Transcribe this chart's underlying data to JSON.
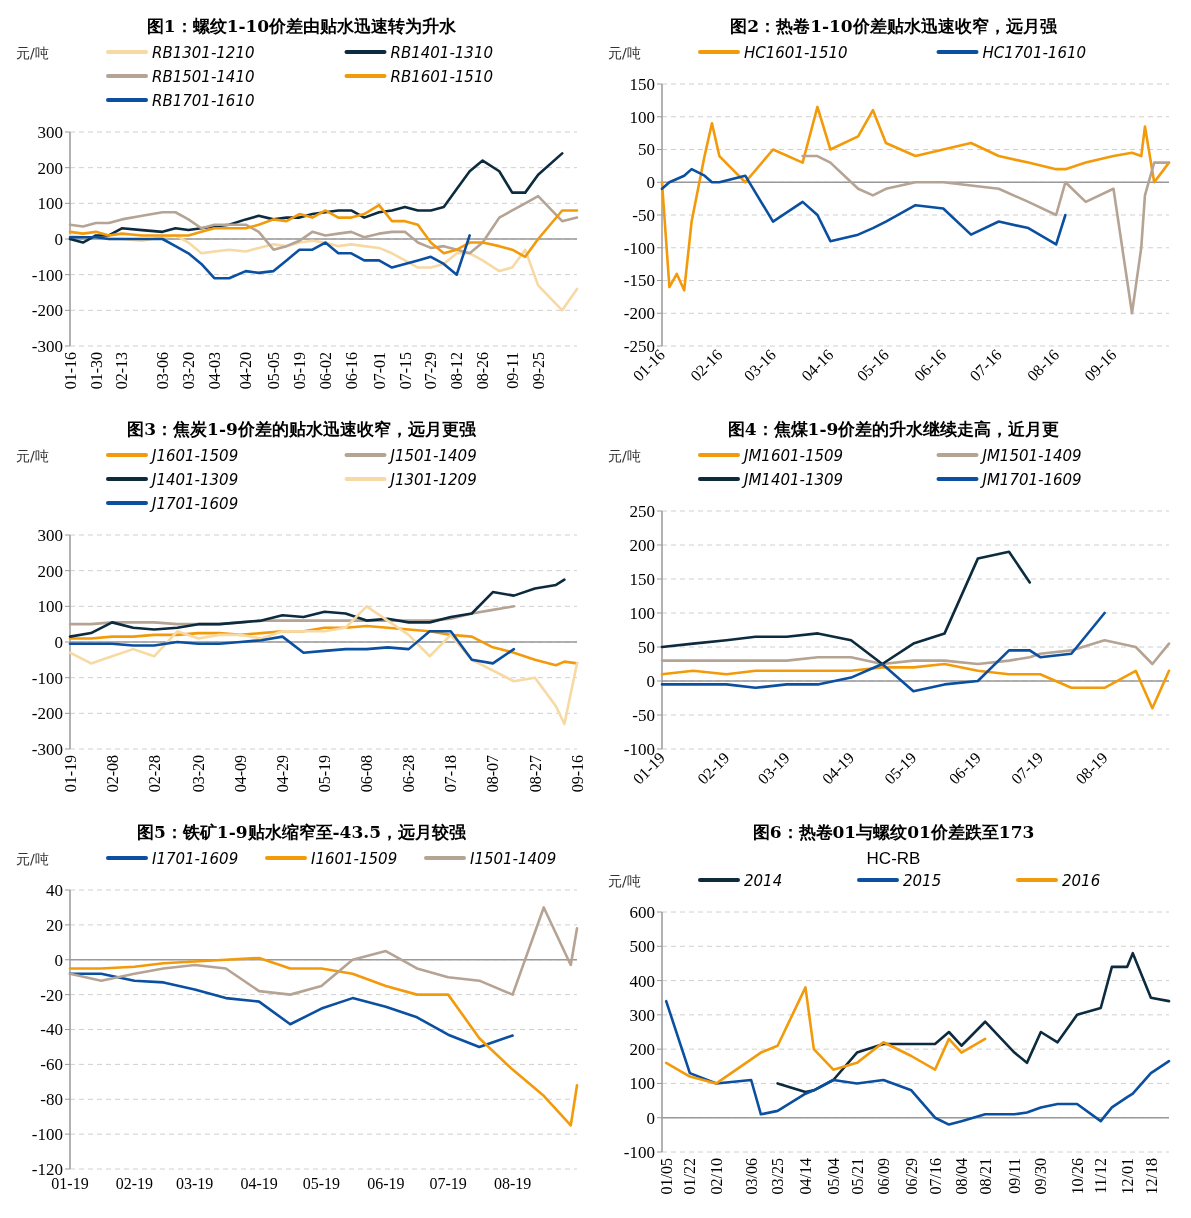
{
  "chart_data": [
    {
      "type": "line",
      "title": "图1：螺纹1-10价差由贴水迅速转为升水",
      "ylabel": "元/吨",
      "legend": "top",
      "grid": "y",
      "ylim": [
        -300,
        300
      ],
      "yticks": [
        -300,
        -200,
        -100,
        0,
        100,
        200,
        300
      ],
      "xlim": [
        "--01-16",
        "--10-16"
      ],
      "xticks": [
        {
          "value": "--01-16",
          "label": "01-16"
        },
        {
          "value": "--01-30",
          "label": "01-30"
        },
        {
          "value": "--02-13",
          "label": "02-13"
        },
        {
          "value": "--03-06",
          "label": "03-06"
        },
        {
          "value": "--03-20",
          "label": "03-20"
        },
        {
          "value": "--04-03",
          "label": "04-03"
        },
        {
          "value": "--04-20",
          "label": "04-20"
        },
        {
          "value": "--05-05",
          "label": "05-05"
        },
        {
          "value": "--05-19",
          "label": "05-19"
        },
        {
          "value": "--06-02",
          "label": "06-02"
        },
        {
          "value": "--06-16",
          "label": "06-16"
        },
        {
          "value": "--07-01",
          "label": "07-01"
        },
        {
          "value": "--07-15",
          "label": "07-15"
        },
        {
          "value": "--07-29",
          "label": "07-29"
        },
        {
          "value": "--08-12",
          "label": "08-12"
        },
        {
          "value": "--08-26",
          "label": "08-26"
        },
        {
          "value": "--09-11",
          "label": "09-11"
        },
        {
          "value": "--09-25",
          "label": "09-25"
        }
      ],
      "x": [
        "--01-16",
        "--01-23",
        "--01-30",
        "--02-06",
        "--02-13",
        "--02-24",
        "--03-06",
        "--03-13",
        "--03-20",
        "--03-27",
        "--04-03",
        "--04-11",
        "--04-20",
        "--04-27",
        "--05-05",
        "--05-12",
        "--05-19",
        "--05-26",
        "--06-02",
        "--06-09",
        "--06-16",
        "--06-23",
        "--07-01",
        "--07-08",
        "--07-15",
        "--07-22",
        "--07-29",
        "--08-05",
        "--08-12",
        "--08-19",
        "--08-26",
        "--09-04",
        "--09-11",
        "--09-18",
        "--09-25",
        "--10-08",
        "--10-16"
      ],
      "series": [
        {
          "name": "RB1301-1210",
          "color": "#f7d9a3",
          "values": [
            10,
            5,
            5,
            0,
            0,
            -5,
            5,
            10,
            -10,
            -40,
            -35,
            -30,
            -35,
            -25,
            -15,
            -20,
            -10,
            -5,
            -10,
            -20,
            -15,
            -20,
            -25,
            -40,
            -60,
            -80,
            -80,
            -70,
            -40,
            -40,
            -60,
            -90,
            -80,
            -30,
            -130,
            -200,
            -140
          ]
        },
        {
          "name": "RB1401-1310",
          "color": "#0d2b3e",
          "values": [
            0,
            -10,
            10,
            10,
            30,
            25,
            20,
            30,
            25,
            30,
            35,
            40,
            55,
            65,
            55,
            60,
            60,
            70,
            75,
            80,
            80,
            60,
            75,
            80,
            90,
            80,
            80,
            90,
            140,
            190,
            220,
            190,
            130,
            130,
            180,
            240,
            null
          ]
        },
        {
          "name": "RB1501-1410",
          "color": "#b5a394",
          "values": [
            40,
            35,
            45,
            45,
            55,
            65,
            75,
            75,
            55,
            30,
            40,
            40,
            40,
            20,
            -30,
            -20,
            -5,
            20,
            10,
            15,
            20,
            5,
            15,
            20,
            20,
            -10,
            -25,
            -20,
            -30,
            -40,
            -10,
            60,
            80,
            100,
            120,
            50,
            60
          ]
        },
        {
          "name": "RB1601-1510",
          "color": "#f39a0a",
          "values": [
            20,
            15,
            20,
            10,
            15,
            10,
            10,
            10,
            10,
            20,
            30,
            30,
            30,
            40,
            55,
            50,
            70,
            60,
            80,
            60,
            60,
            70,
            95,
            50,
            50,
            40,
            -10,
            -40,
            -30,
            -10,
            -10,
            -20,
            -30,
            -50,
            0,
            80,
            80
          ]
        },
        {
          "name": "RB1701-1610",
          "color": "#0a4fa0",
          "values": [
            5,
            5,
            5,
            0,
            0,
            0,
            0,
            -20,
            -40,
            -70,
            -110,
            -110,
            -90,
            -95,
            -90,
            -60,
            -30,
            -30,
            -10,
            -40,
            -40,
            -60,
            -60,
            -80,
            -70,
            -60,
            -50,
            -70,
            -100,
            10,
            null,
            null,
            null,
            null,
            null,
            null,
            null
          ]
        }
      ]
    },
    {
      "type": "line",
      "title": "图2：热卷1-10价差贴水迅速收窄，远月强",
      "ylabel": "元/吨",
      "legend": "top",
      "grid": "y",
      "ylim": [
        -250,
        150
      ],
      "yticks": [
        -250,
        -200,
        -150,
        -100,
        -50,
        0,
        50,
        100,
        150
      ],
      "xlim": [
        "--01-16",
        "--10-16"
      ],
      "xticks": [
        {
          "value": "--01-16",
          "label": "01-16"
        },
        {
          "value": "--02-16",
          "label": "02-16"
        },
        {
          "value": "--03-16",
          "label": "03-16"
        },
        {
          "value": "--04-16",
          "label": "04-16"
        },
        {
          "value": "--05-16",
          "label": "05-16"
        },
        {
          "value": "--06-16",
          "label": "06-16"
        },
        {
          "value": "--07-16",
          "label": "07-16"
        },
        {
          "value": "--08-16",
          "label": "08-16"
        },
        {
          "value": "--09-16",
          "label": "09-16"
        }
      ],
      "x": [
        "--01-16",
        "--01-20",
        "--01-24",
        "--01-28",
        "--02-01",
        "--02-08",
        "--02-12",
        "--02-16",
        "--03-01",
        "--03-16",
        "--04-01",
        "--04-09",
        "--04-16",
        "--05-01",
        "--05-09",
        "--05-16",
        "--06-01",
        "--06-16",
        "--07-01",
        "--07-16",
        "--08-01",
        "--08-16",
        "--08-21",
        "--09-01",
        "--09-16",
        "--09-26",
        "--10-01",
        "--10-03",
        "--10-08",
        "--10-16"
      ],
      "series": [
        {
          "name": "HC1601-1510",
          "color": "#f39a0a",
          "values": [
            0,
            -160,
            -140,
            -165,
            -60,
            40,
            90,
            40,
            0,
            50,
            30,
            115,
            50,
            70,
            110,
            60,
            40,
            50,
            60,
            40,
            30,
            20,
            20,
            30,
            40,
            45,
            40,
            85,
            0,
            30
          ]
        },
        {
          "name": "HC1701-1610",
          "color": "#0a4fa0",
          "values": [
            -10,
            0,
            5,
            10,
            20,
            10,
            0,
            0,
            10,
            -60,
            -30,
            -50,
            -90,
            -80,
            -70,
            -60,
            -35,
            -40,
            -80,
            -60,
            -70,
            -95,
            -50,
            null,
            null,
            null,
            null,
            null,
            null,
            null
          ]
        },
        {
          "color": "#b5a394",
          "values": [
            null,
            null,
            null,
            null,
            null,
            null,
            null,
            null,
            null,
            null,
            40,
            40,
            30,
            -10,
            -20,
            -10,
            0,
            0,
            -5,
            -10,
            -30,
            -50,
            0,
            -30,
            -10,
            -200,
            -100,
            -20,
            30,
            30
          ]
        }
      ]
    },
    {
      "type": "line",
      "title": "图3：焦炭1-9价差的贴水迅速收窄，远月更强",
      "ylabel": "元/吨",
      "legend": "top",
      "grid": "y",
      "ylim": [
        -300,
        300
      ],
      "yticks": [
        -300,
        -200,
        -100,
        0,
        100,
        200,
        300
      ],
      "xlim": [
        "--01-19",
        "--09-16"
      ],
      "xticks": [
        {
          "value": "--01-19",
          "label": "01-19"
        },
        {
          "value": "--02-08",
          "label": "02-08"
        },
        {
          "value": "--02-28",
          "label": "02-28"
        },
        {
          "value": "--03-20",
          "label": "03-20"
        },
        {
          "value": "--04-09",
          "label": "04-09"
        },
        {
          "value": "--04-29",
          "label": "04-29"
        },
        {
          "value": "--05-19",
          "label": "05-19"
        },
        {
          "value": "--06-08",
          "label": "06-08"
        },
        {
          "value": "--06-28",
          "label": "06-28"
        },
        {
          "value": "--07-18",
          "label": "07-18"
        },
        {
          "value": "--08-07",
          "label": "08-07"
        },
        {
          "value": "--08-27",
          "label": "08-27"
        },
        {
          "value": "--09-16",
          "label": "09-16"
        }
      ],
      "x": [
        "--01-19",
        "--01-29",
        "--02-08",
        "--02-18",
        "--02-28",
        "--03-10",
        "--03-20",
        "--03-30",
        "--04-09",
        "--04-19",
        "--04-29",
        "--05-09",
        "--05-19",
        "--05-29",
        "--06-08",
        "--06-18",
        "--06-28",
        "--07-08",
        "--07-18",
        "--07-28",
        "--08-07",
        "--08-17",
        "--08-27",
        "--09-06",
        "--09-10",
        "--09-16"
      ],
      "series": [
        {
          "name": "J1601-1509",
          "color": "#f39a0a",
          "values": [
            10,
            10,
            15,
            15,
            20,
            20,
            25,
            25,
            20,
            25,
            30,
            30,
            40,
            40,
            45,
            40,
            35,
            30,
            20,
            15,
            -15,
            -30,
            -50,
            -65,
            -55,
            -60
          ]
        },
        {
          "name": "J1501-1409",
          "color": "#b5a394",
          "values": [
            50,
            50,
            55,
            55,
            55,
            50,
            50,
            50,
            55,
            60,
            60,
            60,
            60,
            60,
            60,
            60,
            60,
            60,
            65,
            80,
            90,
            100,
            null,
            null,
            null,
            null
          ]
        },
        {
          "name": "J1401-1309",
          "color": "#0d2b3e",
          "values": [
            15,
            25,
            55,
            40,
            35,
            40,
            50,
            50,
            55,
            60,
            75,
            70,
            85,
            80,
            60,
            65,
            55,
            55,
            70,
            80,
            140,
            130,
            150,
            160,
            175,
            null
          ]
        },
        {
          "name": "J1301-1209",
          "color": "#f7d9a3",
          "values": [
            -30,
            -60,
            -40,
            -20,
            -40,
            30,
            10,
            20,
            20,
            10,
            30,
            30,
            30,
            40,
            100,
            60,
            20,
            -40,
            20,
            -50,
            -80,
            -110,
            -100,
            -180,
            -230,
            -60
          ]
        },
        {
          "name": "J1701-1609",
          "color": "#0a4fa0",
          "values": [
            -5,
            -5,
            -5,
            -10,
            -10,
            0,
            -5,
            -5,
            0,
            5,
            15,
            -30,
            -25,
            -20,
            -20,
            -15,
            -20,
            30,
            30,
            -50,
            -60,
            -20,
            null,
            null,
            null,
            null
          ]
        }
      ]
    },
    {
      "type": "line",
      "title": "图4：焦煤1-9价差的升水继续走高，近月更",
      "ylabel": "元/吨",
      "legend": "top",
      "grid": "y",
      "ylim": [
        -100,
        250
      ],
      "yticks": [
        -100,
        -50,
        0,
        50,
        100,
        150,
        200,
        250
      ],
      "xlim": [
        "--01-19",
        "--09-19"
      ],
      "xticks": [
        {
          "value": "--01-19",
          "label": "01-19"
        },
        {
          "value": "--02-19",
          "label": "02-19"
        },
        {
          "value": "--03-19",
          "label": "03-19"
        },
        {
          "value": "--04-19",
          "label": "04-19"
        },
        {
          "value": "--05-19",
          "label": "05-19"
        },
        {
          "value": "--06-19",
          "label": "06-19"
        },
        {
          "value": "--07-19",
          "label": "07-19"
        },
        {
          "value": "--08-19",
          "label": "08-19"
        }
      ],
      "x": [
        "--01-19",
        "--02-03",
        "--02-19",
        "--03-04",
        "--03-19",
        "--04-03",
        "--04-19",
        "--05-04",
        "--05-19",
        "--06-03",
        "--06-19",
        "--07-04",
        "--07-14",
        "--07-19",
        "--08-03",
        "--08-19",
        "--09-03",
        "--09-11",
        "--09-19"
      ],
      "series": [
        {
          "name": "JM1601-1509",
          "color": "#f39a0a",
          "values": [
            10,
            15,
            10,
            15,
            15,
            15,
            15,
            20,
            20,
            25,
            15,
            10,
            10,
            10,
            -10,
            -10,
            15,
            -40,
            15
          ]
        },
        {
          "name": "JM1501-1409",
          "color": "#b5a394",
          "values": [
            30,
            30,
            30,
            30,
            30,
            35,
            35,
            25,
            30,
            30,
            25,
            30,
            35,
            40,
            45,
            60,
            50,
            25,
            55
          ]
        },
        {
          "name": "JM1401-1309",
          "color": "#0d2b3e",
          "values": [
            50,
            55,
            60,
            65,
            65,
            70,
            60,
            25,
            55,
            70,
            180,
            190,
            145,
            null,
            null,
            null,
            null,
            null,
            null
          ]
        },
        {
          "name": "JM1701-1609",
          "color": "#0a4fa0",
          "values": [
            -5,
            -5,
            -5,
            -10,
            -5,
            -5,
            5,
            25,
            -15,
            -5,
            0,
            45,
            45,
            35,
            40,
            100,
            null,
            null,
            null
          ]
        }
      ]
    },
    {
      "type": "line",
      "title": "图5：铁矿1-9贴水缩窄至-43.5，远月较强",
      "ylabel": "元/吨",
      "legend": "top",
      "grid": "y",
      "ylim": [
        -120,
        40
      ],
      "yticks": [
        -120,
        -100,
        -80,
        -60,
        -40,
        -20,
        0,
        20,
        40
      ],
      "xlim": [
        "--01-19",
        "--09-19"
      ],
      "xticks": [
        {
          "value": "--01-19",
          "label": "01-19"
        },
        {
          "value": "--02-19",
          "label": "02-19"
        },
        {
          "value": "--03-19",
          "label": "03-19"
        },
        {
          "value": "--04-19",
          "label": "04-19"
        },
        {
          "value": "--05-19",
          "label": "05-19"
        },
        {
          "value": "--06-19",
          "label": "06-19"
        },
        {
          "value": "--07-19",
          "label": "07-19"
        },
        {
          "value": "--08-19",
          "label": "08-19"
        }
      ],
      "x": [
        "--01-19",
        "--02-03",
        "--02-19",
        "--03-04",
        "--03-19",
        "--04-03",
        "--04-19",
        "--05-04",
        "--05-19",
        "--06-03",
        "--06-19",
        "--07-04",
        "--07-19",
        "--08-03",
        "--08-19",
        "--09-03",
        "--09-16",
        "--09-19"
      ],
      "series": [
        {
          "name": "I1701-1609",
          "color": "#0a4fa0",
          "values": [
            -8,
            -8,
            -12,
            -13,
            -17,
            -22,
            -24,
            -37,
            -28,
            -22,
            -27,
            -33,
            -43,
            -50,
            -43.5,
            null,
            null,
            null
          ]
        },
        {
          "name": "I1601-1509",
          "color": "#f39a0a",
          "values": [
            -5,
            -5,
            -4,
            -2,
            -1,
            0,
            1,
            -5,
            -5,
            -8,
            -15,
            -20,
            -20,
            -45,
            -63,
            -78,
            -95,
            -72
          ]
        },
        {
          "name": "I1501-1409",
          "color": "#b5a394",
          "values": [
            -8,
            -12,
            -8,
            -5,
            -3,
            -5,
            -18,
            -20,
            -15,
            0,
            5,
            -5,
            -10,
            -12,
            -20,
            30,
            -3,
            18
          ]
        }
      ]
    },
    {
      "type": "line",
      "title": "图6：热卷01与螺纹01价差跌至173",
      "subtitle": "HC-RB",
      "ylabel": "元/吨",
      "legend": "top",
      "grid": "y",
      "ylim": [
        -100,
        600
      ],
      "yticks": [
        -100,
        0,
        100,
        200,
        300,
        400,
        500,
        600
      ],
      "xlim": [
        "--01-02",
        "--12-31"
      ],
      "xticks": [
        {
          "value": "--01-05",
          "label": "01/05"
        },
        {
          "value": "--01-22",
          "label": "01/22"
        },
        {
          "value": "--02-10",
          "label": "02/10"
        },
        {
          "value": "--03-06",
          "label": "03/06"
        },
        {
          "value": "--03-25",
          "label": "03/25"
        },
        {
          "value": "--04-14",
          "label": "04/14"
        },
        {
          "value": "--05-04",
          "label": "05/04"
        },
        {
          "value": "--05-21",
          "label": "05/21"
        },
        {
          "value": "--06-09",
          "label": "06/09"
        },
        {
          "value": "--06-29",
          "label": "06/29"
        },
        {
          "value": "--07-16",
          "label": "07/16"
        },
        {
          "value": "--08-04",
          "label": "08/04"
        },
        {
          "value": "--08-21",
          "label": "08/21"
        },
        {
          "value": "--09-11",
          "label": "09/11"
        },
        {
          "value": "--09-30",
          "label": "09/30"
        },
        {
          "value": "--10-26",
          "label": "10/26"
        },
        {
          "value": "--11-12",
          "label": "11/12"
        },
        {
          "value": "--12-01",
          "label": "12/01"
        },
        {
          "value": "--12-18",
          "label": "12/18"
        }
      ],
      "x": [
        "--01-05",
        "--01-22",
        "--02-10",
        "--03-06",
        "--03-13",
        "--03-25",
        "--04-14",
        "--04-20",
        "--05-04",
        "--05-21",
        "--06-09",
        "--06-29",
        "--07-16",
        "--07-26",
        "--08-04",
        "--08-21",
        "--09-11",
        "--09-20",
        "--09-30",
        "--10-12",
        "--10-26",
        "--11-12",
        "--11-20",
        "--12-01",
        "--12-05",
        "--12-18",
        "--12-31"
      ],
      "series": [
        {
          "name": "2014",
          "color": "#0d2b3e",
          "values": [
            null,
            null,
            null,
            null,
            null,
            100,
            75,
            80,
            110,
            190,
            215,
            215,
            215,
            250,
            210,
            280,
            190,
            160,
            250,
            220,
            300,
            320,
            440,
            440,
            480,
            350,
            340
          ]
        },
        {
          "name": "2015",
          "color": "#0a4fa0",
          "values": [
            340,
            130,
            100,
            110,
            10,
            20,
            70,
            80,
            110,
            100,
            110,
            80,
            0,
            -20,
            -10,
            10,
            10,
            15,
            30,
            40,
            40,
            -10,
            30,
            60,
            70,
            130,
            165
          ]
        },
        {
          "name": "2016",
          "color": "#f39a0a",
          "values": [
            160,
            120,
            100,
            170,
            190,
            210,
            380,
            200,
            140,
            160,
            220,
            180,
            140,
            230,
            190,
            230,
            null,
            null,
            null,
            null,
            null,
            null,
            null,
            null,
            null,
            null,
            null
          ]
        }
      ]
    }
  ]
}
